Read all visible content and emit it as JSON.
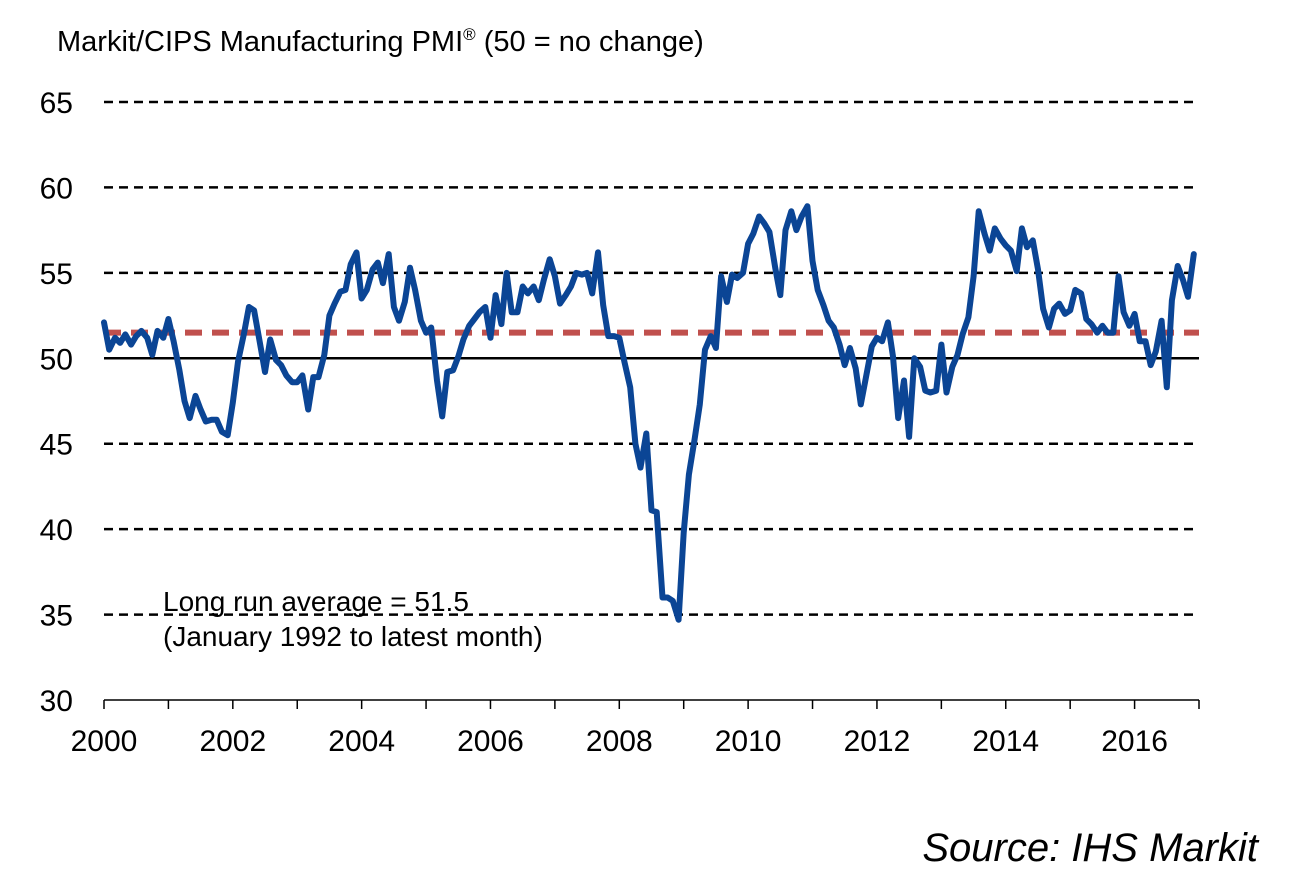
{
  "source": "Source: IHS Markit",
  "chart_data": {
    "type": "line",
    "title": "Markit/CIPS Manufacturing PMI",
    "title_mark": "®",
    "title_suffix": " (50 = no change)",
    "xlabel": "",
    "ylabel": "",
    "ylim": [
      30,
      65
    ],
    "xlim": [
      2000,
      2017
    ],
    "yticks": [
      30,
      35,
      40,
      45,
      50,
      55,
      60,
      65
    ],
    "xticks": [
      2000,
      2002,
      2004,
      2006,
      2008,
      2010,
      2012,
      2014,
      2016
    ],
    "grid": "horizontal dashed",
    "annotation_line1": "Long run average = 51.5",
    "annotation_line2": "(January 1992 to latest month)",
    "reference_lines": [
      {
        "label": "Long run average",
        "value": 51.5,
        "color": "#c0504d"
      }
    ],
    "colors": {
      "series": "#0b4595",
      "average": "#c0504d",
      "grid": "#000000"
    },
    "series": [
      {
        "x": [
          2000.0,
          2000.08,
          2000.17,
          2000.25,
          2000.33,
          2000.42,
          2000.5,
          2000.58,
          2000.67,
          2000.75,
          2000.83,
          2000.92,
          2001.0,
          2001.08,
          2001.17,
          2001.25,
          2001.33,
          2001.42,
          2001.5,
          2001.58,
          2001.67,
          2001.75,
          2001.83,
          2001.92,
          2002.0,
          2002.08,
          2002.17,
          2002.25,
          2002.33,
          2002.42,
          2002.5,
          2002.58,
          2002.67,
          2002.75,
          2002.83,
          2002.92,
          2003.0,
          2003.08,
          2003.17,
          2003.25,
          2003.33,
          2003.42,
          2003.5,
          2003.58,
          2003.67,
          2003.75,
          2003.83,
          2003.92,
          2004.0,
          2004.08,
          2004.17,
          2004.25,
          2004.33,
          2004.42,
          2004.5,
          2004.58,
          2004.67,
          2004.75,
          2004.83,
          2004.92,
          2005.0,
          2005.08,
          2005.17,
          2005.25,
          2005.33,
          2005.42,
          2005.5,
          2005.58,
          2005.67,
          2005.75,
          2005.83,
          2005.92,
          2006.0,
          2006.08,
          2006.17,
          2006.25,
          2006.33,
          2006.42,
          2006.5,
          2006.58,
          2006.67,
          2006.75,
          2006.83,
          2006.92,
          2007.0,
          2007.08,
          2007.17,
          2007.25,
          2007.33,
          2007.42,
          2007.5,
          2007.58,
          2007.67,
          2007.75,
          2007.83,
          2007.92,
          2008.0,
          2008.08,
          2008.17,
          2008.25,
          2008.33,
          2008.42,
          2008.5,
          2008.58,
          2008.67,
          2008.75,
          2008.83,
          2008.92,
          2009.0,
          2009.08,
          2009.17,
          2009.25,
          2009.33,
          2009.42,
          2009.5,
          2009.58,
          2009.67,
          2009.75,
          2009.83,
          2009.92,
          2010.0,
          2010.08,
          2010.17,
          2010.25,
          2010.33,
          2010.42,
          2010.5,
          2010.58,
          2010.67,
          2010.75,
          2010.83,
          2010.92,
          2011.0,
          2011.08,
          2011.17,
          2011.25,
          2011.33,
          2011.42,
          2011.5,
          2011.58,
          2011.67,
          2011.75,
          2011.83,
          2011.92,
          2012.0,
          2012.08,
          2012.17,
          2012.25,
          2012.33,
          2012.42,
          2012.5,
          2012.58,
          2012.67,
          2012.75,
          2012.83,
          2012.92,
          2013.0,
          2013.08,
          2013.17,
          2013.25,
          2013.33,
          2013.42,
          2013.5,
          2013.58,
          2013.67,
          2013.75,
          2013.83,
          2013.92,
          2014.0,
          2014.08,
          2014.17,
          2014.25,
          2014.33,
          2014.42,
          2014.5,
          2014.58,
          2014.67,
          2014.75,
          2014.83,
          2014.92,
          2015.0,
          2015.08,
          2015.17,
          2015.25,
          2015.33,
          2015.42,
          2015.5,
          2015.58,
          2015.67,
          2015.75,
          2015.83,
          2015.92,
          2016.0,
          2016.08,
          2016.17,
          2016.25,
          2016.33,
          2016.42,
          2016.5,
          2016.58,
          2016.67,
          2016.75,
          2016.83,
          2016.92
        ],
        "values": [
          52.1,
          50.5,
          51.2,
          50.9,
          51.4,
          50.8,
          51.3,
          51.6,
          51.2,
          50.2,
          51.6,
          51.2,
          52.3,
          51.0,
          49.3,
          47.5,
          46.5,
          47.8,
          47.0,
          46.3,
          46.4,
          46.4,
          45.7,
          45.5,
          47.4,
          49.8,
          51.4,
          53.0,
          52.8,
          50.9,
          49.2,
          51.1,
          49.9,
          49.6,
          49.0,
          48.6,
          48.6,
          49.0,
          47.0,
          48.9,
          48.9,
          50.2,
          52.5,
          53.2,
          53.9,
          54.0,
          55.5,
          56.2,
          53.5,
          54.0,
          55.2,
          55.6,
          54.4,
          56.1,
          53.0,
          52.2,
          53.3,
          55.3,
          54.0,
          52.2,
          51.5,
          51.8,
          48.7,
          46.6,
          49.2,
          49.3,
          50.1,
          51.1,
          51.9,
          52.3,
          52.7,
          53.0,
          51.2,
          53.7,
          52.0,
          55.0,
          52.7,
          52.7,
          54.2,
          53.8,
          54.2,
          53.4,
          54.6,
          55.8,
          54.8,
          53.2,
          53.7,
          54.2,
          55.0,
          54.9,
          55.0,
          53.8,
          56.2,
          53.1,
          51.3,
          51.3,
          51.2,
          49.8,
          48.3,
          45.0,
          43.6,
          45.6,
          41.1,
          41.0,
          36.0,
          36.0,
          35.8,
          34.7,
          39.8,
          43.2,
          45.3,
          47.3,
          50.5,
          51.3,
          50.6,
          54.8,
          53.3,
          54.9,
          54.7,
          55.0,
          56.7,
          57.3,
          58.3,
          57.9,
          57.4,
          55.3,
          53.7,
          57.5,
          58.6,
          57.5,
          58.3,
          58.9,
          55.7,
          54.0,
          53.1,
          52.2,
          51.8,
          50.8,
          49.6,
          50.6,
          49.4,
          47.3,
          48.9,
          50.7,
          51.2,
          51.0,
          52.1,
          50.1,
          46.5,
          48.7,
          45.4,
          50.0,
          49.5,
          48.1,
          48.0,
          48.1,
          50.8,
          48.0,
          49.5,
          50.2,
          51.4,
          52.4,
          54.8,
          58.6,
          57.3,
          56.3,
          57.6,
          57.0,
          56.6,
          56.3,
          55.1,
          57.6,
          56.5,
          56.9,
          55.2,
          52.9,
          51.8,
          52.9,
          53.2,
          52.6,
          52.8,
          54.0,
          53.8,
          52.3,
          52.0,
          51.5,
          51.9,
          51.5,
          51.5,
          54.8,
          52.7,
          51.9,
          52.6,
          51.0,
          51.0,
          49.6,
          50.4,
          52.2,
          48.3,
          53.4,
          55.4,
          54.6,
          53.6,
          56.1
        ]
      }
    ]
  }
}
